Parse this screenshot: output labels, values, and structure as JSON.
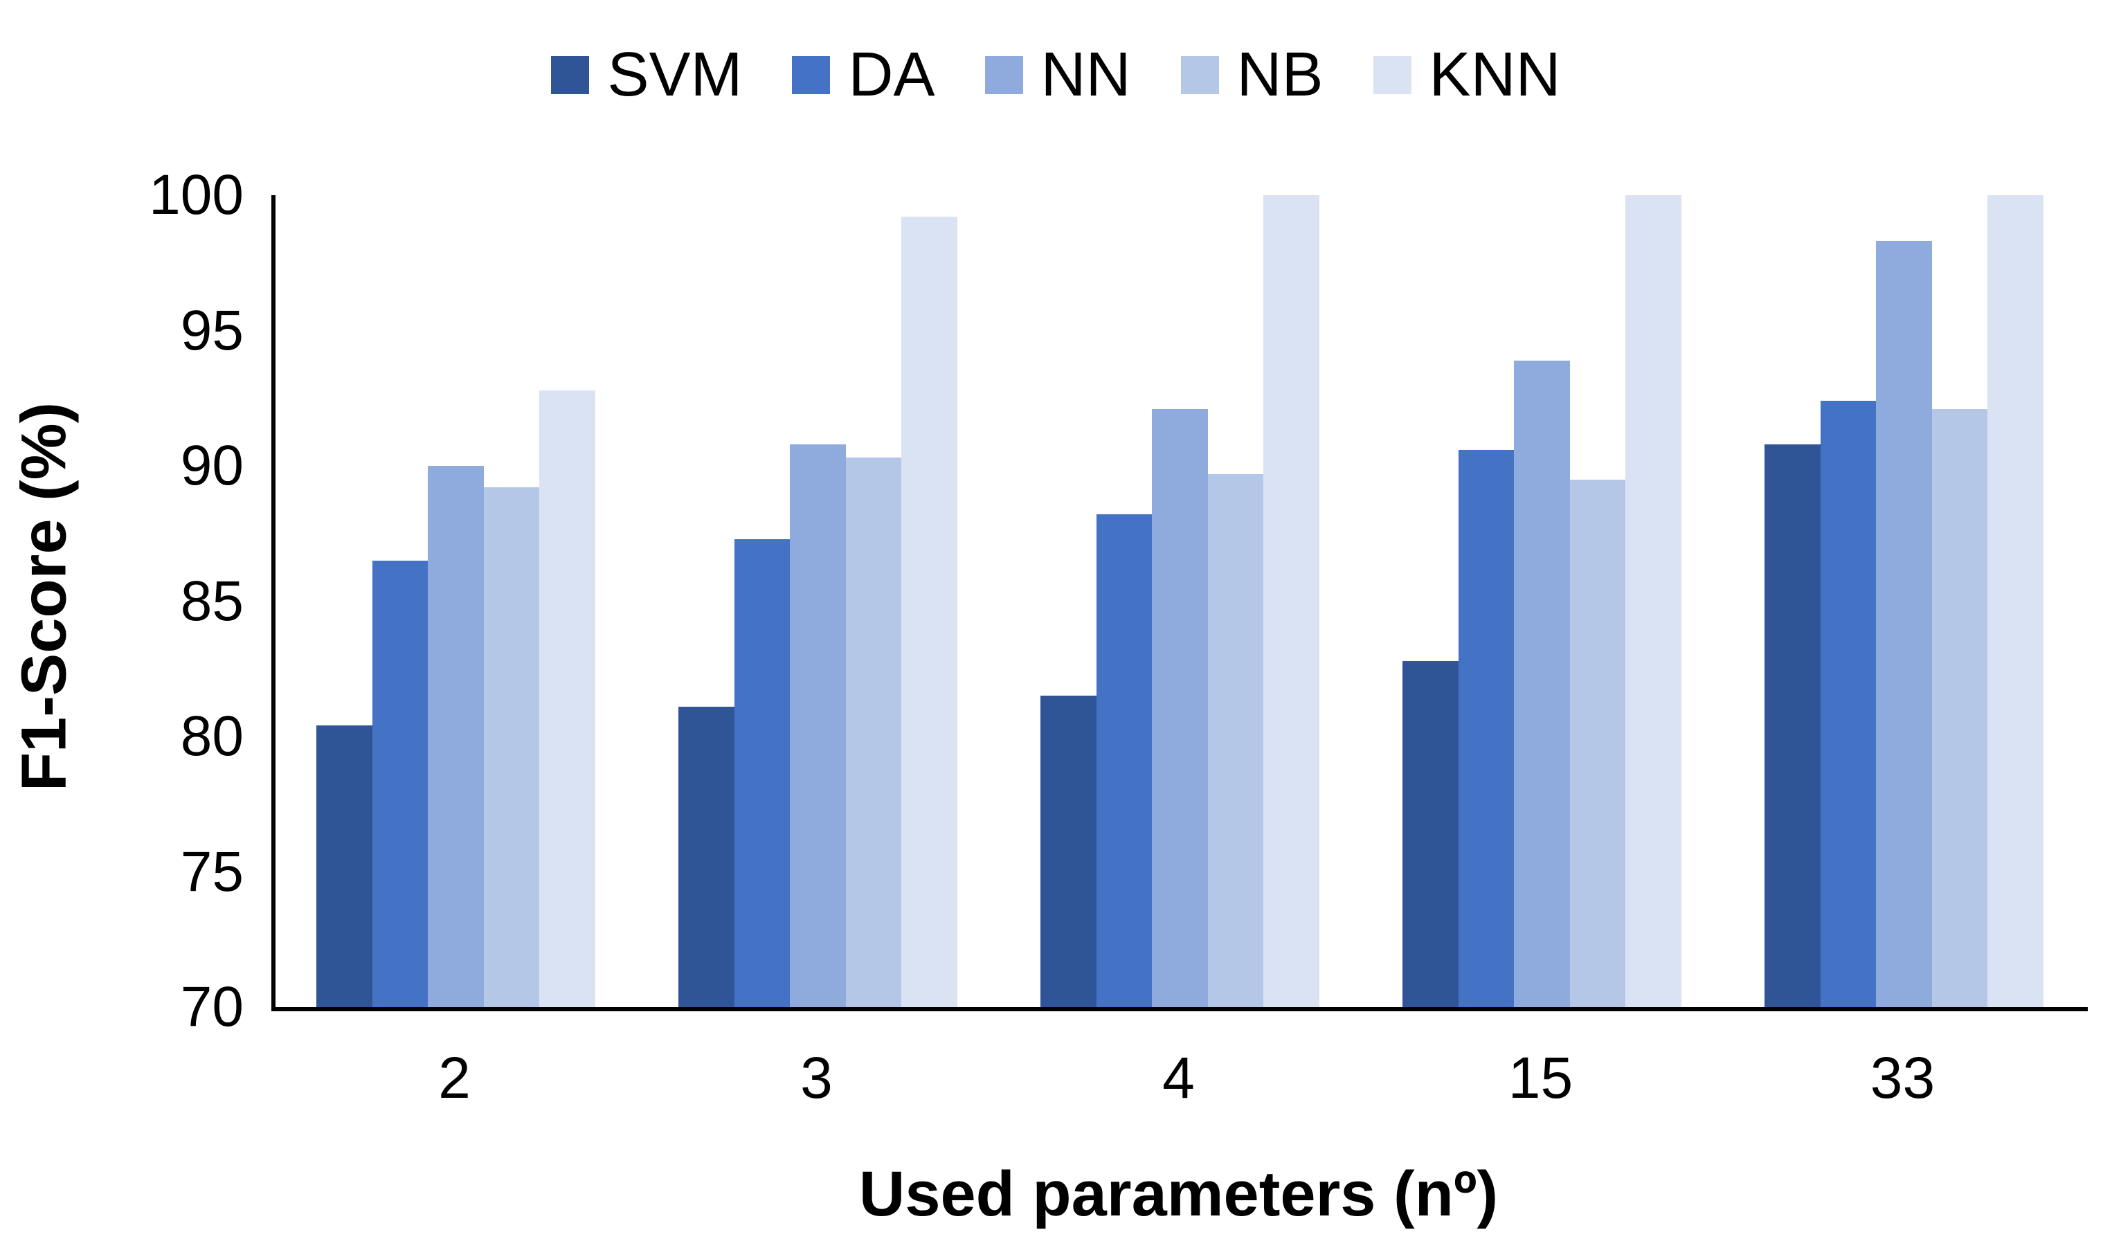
{
  "chart_data": {
    "type": "bar",
    "title": "",
    "xlabel": "Used parameters (nº)",
    "ylabel": "F1-Score (%)",
    "categories": [
      "2",
      "3",
      "4",
      "15",
      "33"
    ],
    "series": [
      {
        "name": "SVM",
        "color": "#2F5597",
        "values": [
          80.4,
          81.1,
          81.5,
          82.8,
          90.8
        ]
      },
      {
        "name": "DA",
        "color": "#4472C4",
        "values": [
          86.5,
          87.3,
          88.2,
          90.6,
          92.4
        ]
      },
      {
        "name": "NN",
        "color": "#8FAADC",
        "values": [
          90.0,
          90.8,
          92.1,
          93.9,
          98.3
        ]
      },
      {
        "name": "NB",
        "color": "#B4C7E7",
        "values": [
          89.2,
          90.3,
          89.7,
          89.5,
          92.1
        ]
      },
      {
        "name": "KNN",
        "color": "#DAE3F3",
        "values": [
          92.8,
          99.2,
          100,
          100,
          100
        ]
      }
    ],
    "ylim": [
      70,
      100
    ],
    "yticks": [
      70,
      75,
      80,
      85,
      90,
      95,
      100
    ],
    "grid": false,
    "legend_position": "top"
  },
  "colors": {
    "axis": "#000000",
    "text": "#000000",
    "background": "#FFFFFF"
  }
}
